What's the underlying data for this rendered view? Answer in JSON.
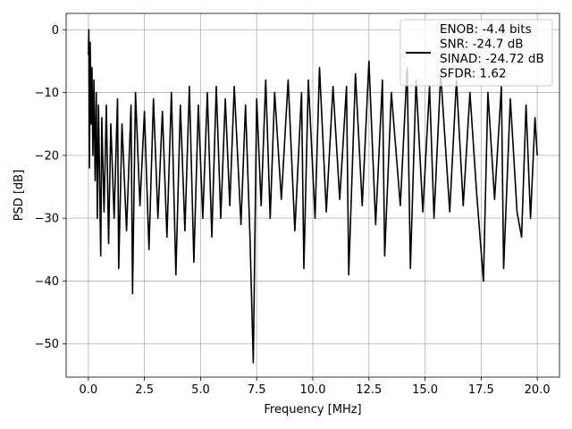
{
  "chart_data": {
    "type": "line",
    "title": "",
    "xlabel": "Frequency [MHz]",
    "ylabel": "PSD [dB]",
    "xlim": [
      -0.99,
      20.99
    ],
    "ylim": [
      -55.3,
      2.6
    ],
    "x_ticks": [
      0.0,
      2.5,
      5.0,
      7.5,
      10.0,
      12.5,
      15.0,
      17.5,
      20.0
    ],
    "x_tick_labels": [
      "0.0",
      "2.5",
      "5.0",
      "7.5",
      "10.0",
      "12.5",
      "15.0",
      "17.5",
      "20.0"
    ],
    "y_ticks": [
      0,
      -10,
      -20,
      -30,
      -40,
      -50
    ],
    "y_tick_labels": [
      "0",
      "−10",
      "−20",
      "−30",
      "−40",
      "−50"
    ],
    "grid": true,
    "legend": {
      "placement": "upper-right",
      "entries": [
        "ENOB: -4.4 bits",
        "SNR: -24.7 dB",
        "SINAD: -24.72 dB",
        "SFDR: 1.62"
      ]
    },
    "series": [
      {
        "color": "#000000",
        "points": [
          [
            0.0,
            -4.0
          ],
          [
            0.02,
            0.0
          ],
          [
            0.05,
            -22.0
          ],
          [
            0.08,
            -2.0
          ],
          [
            0.12,
            -15.0
          ],
          [
            0.16,
            -6.0
          ],
          [
            0.2,
            -20.0
          ],
          [
            0.25,
            -8.0
          ],
          [
            0.3,
            -24.0
          ],
          [
            0.35,
            -10.0
          ],
          [
            0.4,
            -30.0
          ],
          [
            0.45,
            -12.0
          ],
          [
            0.55,
            -36.0
          ],
          [
            0.6,
            -14.0
          ],
          [
            0.7,
            -29.0
          ],
          [
            0.8,
            -12.0
          ],
          [
            0.9,
            -34.0
          ],
          [
            1.0,
            -15.0
          ],
          [
            1.15,
            -30.0
          ],
          [
            1.3,
            -11.0
          ],
          [
            1.35,
            -38.0
          ],
          [
            1.5,
            -15.0
          ],
          [
            1.7,
            -32.0
          ],
          [
            1.9,
            -12.0
          ],
          [
            1.97,
            -42.0
          ],
          [
            2.1,
            -10.0
          ],
          [
            2.3,
            -28.0
          ],
          [
            2.5,
            -13.0
          ],
          [
            2.7,
            -35.0
          ],
          [
            2.9,
            -11.0
          ],
          [
            3.1,
            -30.0
          ],
          [
            3.3,
            -13.0
          ],
          [
            3.5,
            -33.0
          ],
          [
            3.7,
            -10.0
          ],
          [
            3.9,
            -39.0
          ],
          [
            4.1,
            -12.0
          ],
          [
            4.3,
            -32.0
          ],
          [
            4.5,
            -9.0
          ],
          [
            4.7,
            -37.0
          ],
          [
            4.9,
            -12.0
          ],
          [
            5.1,
            -30.0
          ],
          [
            5.3,
            -10.0
          ],
          [
            5.5,
            -33.0
          ],
          [
            5.7,
            -9.0
          ],
          [
            5.9,
            -30.0
          ],
          [
            6.1,
            -11.0
          ],
          [
            6.3,
            -28.0
          ],
          [
            6.5,
            -9.0
          ],
          [
            6.8,
            -31.0
          ],
          [
            7.0,
            -12.0
          ],
          [
            7.2,
            -33.0
          ],
          [
            7.35,
            -53.0
          ],
          [
            7.5,
            -11.0
          ],
          [
            7.7,
            -28.0
          ],
          [
            7.9,
            -8.0
          ],
          [
            8.1,
            -30.0
          ],
          [
            8.3,
            -10.0
          ],
          [
            8.6,
            -27.0
          ],
          [
            8.9,
            -8.0
          ],
          [
            9.2,
            -32.0
          ],
          [
            9.5,
            -10.0
          ],
          [
            9.6,
            -38.0
          ],
          [
            9.8,
            -8.0
          ],
          [
            10.1,
            -30.0
          ],
          [
            10.3,
            -6.0
          ],
          [
            10.6,
            -29.0
          ],
          [
            10.9,
            -9.0
          ],
          [
            11.2,
            -27.0
          ],
          [
            11.5,
            -9.0
          ],
          [
            11.6,
            -39.0
          ],
          [
            11.9,
            -7.0
          ],
          [
            12.2,
            -28.0
          ],
          [
            12.5,
            -5.0
          ],
          [
            12.8,
            -31.0
          ],
          [
            13.1,
            -8.0
          ],
          [
            13.2,
            -36.0
          ],
          [
            13.5,
            -10.0
          ],
          [
            13.9,
            -28.0
          ],
          [
            14.2,
            -6.0
          ],
          [
            14.35,
            -38.0
          ],
          [
            14.6,
            -8.0
          ],
          [
            14.9,
            -29.0
          ],
          [
            15.2,
            -9.0
          ],
          [
            15.4,
            -30.0
          ],
          [
            15.7,
            -7.0
          ],
          [
            16.1,
            -29.0
          ],
          [
            16.4,
            -8.0
          ],
          [
            16.7,
            -28.0
          ],
          [
            17.0,
            -10.0
          ],
          [
            17.3,
            -26.0
          ],
          [
            17.6,
            -40.0
          ],
          [
            17.8,
            -10.0
          ],
          [
            18.1,
            -27.0
          ],
          [
            18.4,
            -9.0
          ],
          [
            18.5,
            -38.0
          ],
          [
            18.8,
            -11.0
          ],
          [
            19.1,
            -29.0
          ],
          [
            19.3,
            -33.0
          ],
          [
            19.5,
            -12.0
          ],
          [
            19.7,
            -30.0
          ],
          [
            19.9,
            -14.0
          ],
          [
            20.0,
            -20.0
          ]
        ]
      }
    ]
  }
}
